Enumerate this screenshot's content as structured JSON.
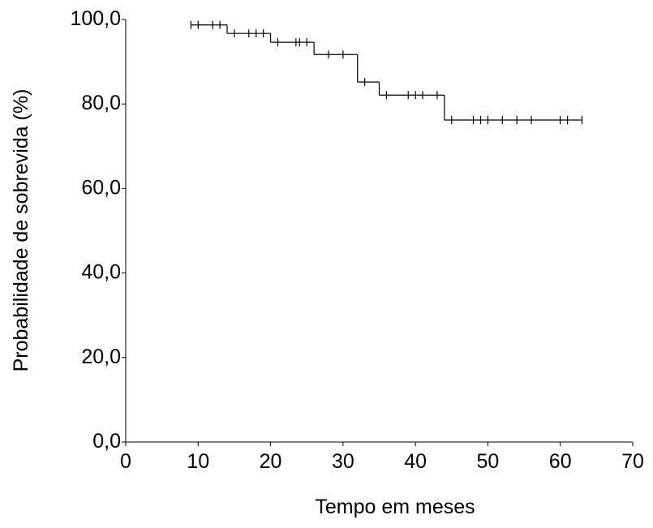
{
  "chart_data": {
    "type": "km",
    "xlabel": "Tempo em meses",
    "ylabel": "Probabilidade de sobrevida (%)",
    "xlim": [
      0,
      70
    ],
    "xticks": [
      0,
      10,
      20,
      30,
      40,
      50,
      60,
      70
    ],
    "ylim": [
      0,
      100
    ],
    "yticks": [
      {
        "value": 0,
        "label": "0,0"
      },
      {
        "value": 20,
        "label": "20,0"
      },
      {
        "value": 40,
        "label": "40,0"
      },
      {
        "value": 60,
        "label": "60,0"
      },
      {
        "value": 80,
        "label": "80,0"
      },
      {
        "value": 100,
        "label": "100,0"
      }
    ],
    "color": "#000000",
    "curve": {
      "x": [
        9,
        14,
        20,
        26,
        32,
        35,
        44,
        63
      ],
      "values": [
        98.7,
        96.7,
        94.6,
        91.7,
        85.2,
        82.1,
        76.2,
        76.2
      ]
    },
    "censored": {
      "x": [
        9,
        10,
        12,
        13,
        15,
        17,
        18,
        19,
        21,
        23.5,
        24,
        25,
        28,
        30,
        33,
        36,
        39,
        40,
        41,
        43,
        45,
        48,
        49,
        50,
        52,
        54,
        56,
        60,
        61,
        63
      ],
      "values": [
        98.7,
        98.7,
        98.7,
        98.7,
        96.7,
        96.7,
        96.7,
        96.7,
        94.6,
        94.6,
        94.6,
        94.6,
        91.7,
        91.7,
        85.2,
        82.1,
        82.1,
        82.1,
        82.1,
        82.1,
        76.2,
        76.2,
        76.2,
        76.2,
        76.2,
        76.2,
        76.2,
        76.2,
        76.2,
        76.2
      ]
    }
  }
}
